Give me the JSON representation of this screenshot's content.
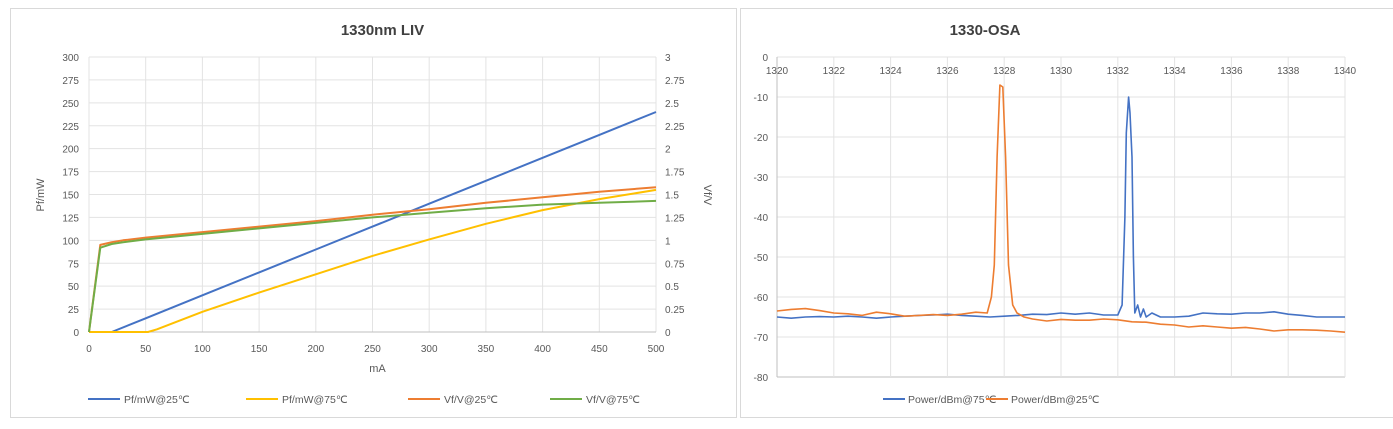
{
  "chart_data": [
    {
      "type": "line",
      "title": "1330nm LIV",
      "xlabel": "mA",
      "ylabel": "Pf/mW",
      "y2label": "Vf/V",
      "xlim": [
        0,
        500
      ],
      "ylim": [
        0,
        300
      ],
      "y2lim": [
        0,
        3
      ],
      "xticks": [
        "0",
        "50",
        "100",
        "150",
        "200",
        "250",
        "300",
        "350",
        "400",
        "450",
        "500"
      ],
      "yticks": [
        "0",
        "25",
        "50",
        "75",
        "100",
        "125",
        "150",
        "175",
        "200",
        "225",
        "250",
        "275",
        "300"
      ],
      "y2ticks": [
        "0",
        "0.25",
        "0.5",
        "0.75",
        "1",
        "1.25",
        "1.5",
        "1.75",
        "2",
        "2.25",
        "2.5",
        "2.75",
        "3"
      ],
      "grid": true,
      "legend_position": "bottom",
      "series": [
        {
          "name": "Pf/mW@25℃",
          "axis": "left",
          "color": "#4472C4",
          "x": [
            0,
            10,
            20,
            50,
            100,
            150,
            200,
            250,
            300,
            350,
            400,
            450,
            500
          ],
          "y": [
            0,
            0,
            0,
            15,
            40,
            65,
            90,
            115,
            140,
            165,
            190,
            215,
            240
          ]
        },
        {
          "name": "Pf/mW@75℃",
          "axis": "left",
          "color": "#FFC000",
          "x": [
            0,
            10,
            20,
            30,
            40,
            52,
            60,
            100,
            150,
            200,
            250,
            300,
            350,
            400,
            450,
            500
          ],
          "y": [
            0,
            0,
            0,
            0,
            0,
            0,
            3,
            22,
            43,
            63,
            83,
            101,
            118,
            133,
            145,
            155
          ]
        },
        {
          "name": "Vf/V@25℃",
          "axis": "right",
          "color": "#ED7D31",
          "x": [
            0,
            10,
            20,
            30,
            50,
            100,
            150,
            200,
            250,
            300,
            350,
            400,
            450,
            500
          ],
          "y": [
            0,
            0.95,
            0.98,
            1.0,
            1.03,
            1.09,
            1.15,
            1.21,
            1.28,
            1.34,
            1.41,
            1.47,
            1.53,
            1.58
          ]
        },
        {
          "name": "Vf/V@75℃",
          "axis": "right",
          "color": "#70AD47",
          "x": [
            0,
            10,
            20,
            30,
            50,
            100,
            150,
            200,
            250,
            300,
            350,
            400,
            450,
            500
          ],
          "y": [
            0,
            0.92,
            0.96,
            0.98,
            1.01,
            1.07,
            1.13,
            1.19,
            1.25,
            1.3,
            1.35,
            1.39,
            1.41,
            1.43
          ]
        }
      ]
    },
    {
      "type": "line",
      "title": "1330-OSA",
      "xlabel": "",
      "ylabel": "",
      "xlim": [
        1320,
        1340
      ],
      "ylim": [
        -80,
        0
      ],
      "xticks": [
        "1320",
        "1322",
        "1324",
        "1326",
        "1328",
        "1330",
        "1332",
        "1334",
        "1336",
        "1338",
        "1340"
      ],
      "yticks": [
        "0",
        "-10",
        "-20",
        "-30",
        "-40",
        "-50",
        "-60",
        "-70",
        "-80"
      ],
      "grid": true,
      "legend_position": "bottom",
      "series": [
        {
          "name": "Power/dBm@75℃",
          "color": "#4472C4",
          "x": [
            1320,
            1320.5,
            1321,
            1321.5,
            1322,
            1322.5,
            1323,
            1323.5,
            1324,
            1324.5,
            1325,
            1325.5,
            1326,
            1326.5,
            1327,
            1327.5,
            1328,
            1328.5,
            1329,
            1329.5,
            1330,
            1330.5,
            1331,
            1331.5,
            1332,
            1332.15,
            1332.25,
            1332.3,
            1332.38,
            1332.43,
            1332.5,
            1332.55,
            1332.6,
            1332.7,
            1332.8,
            1332.9,
            1333,
            1333.2,
            1333.5,
            1334,
            1334.5,
            1335,
            1335.5,
            1336,
            1336.5,
            1337,
            1337.5,
            1338,
            1338.5,
            1339,
            1339.5,
            1340
          ],
          "y": [
            -65,
            -65.3,
            -65,
            -64.9,
            -65,
            -64.8,
            -65,
            -65.3,
            -65,
            -64.8,
            -64.6,
            -64.5,
            -64.3,
            -64.6,
            -64.8,
            -65,
            -64.8,
            -64.6,
            -64.3,
            -64.4,
            -64,
            -64.3,
            -64,
            -64.5,
            -64.5,
            -62,
            -40,
            -19,
            -10,
            -14,
            -25,
            -50,
            -64,
            -62,
            -65,
            -63,
            -65,
            -64,
            -65,
            -65,
            -64.8,
            -64,
            -64.2,
            -64.3,
            -64,
            -64,
            -63.7,
            -64.3,
            -64.6,
            -65,
            -65,
            -65
          ]
        },
        {
          "name": "Power/dBm@25℃",
          "color": "#ED7D31",
          "x": [
            1320,
            1320.5,
            1321,
            1321.5,
            1322,
            1322.5,
            1323,
            1323.5,
            1324,
            1324.5,
            1325,
            1325.5,
            1326,
            1326.5,
            1327,
            1327.4,
            1327.55,
            1327.65,
            1327.75,
            1327.85,
            1327.95,
            1328.05,
            1328.15,
            1328.3,
            1328.45,
            1328.7,
            1329,
            1329.5,
            1330,
            1330.5,
            1331,
            1331.5,
            1332,
            1332.5,
            1333,
            1333.5,
            1334,
            1334.5,
            1335,
            1335.5,
            1336,
            1336.5,
            1337,
            1337.5,
            1338,
            1338.5,
            1339,
            1339.5,
            1340
          ],
          "y": [
            -63.5,
            -63.1,
            -62.9,
            -63.4,
            -64,
            -64.2,
            -64.6,
            -63.8,
            -64.2,
            -64.8,
            -64.6,
            -64.4,
            -64.6,
            -64.3,
            -63.8,
            -64,
            -60,
            -52,
            -25,
            -7,
            -7.5,
            -25,
            -52,
            -62,
            -64,
            -65,
            -65.5,
            -66,
            -65.6,
            -65.8,
            -65.8,
            -65.5,
            -65.7,
            -66.2,
            -66.3,
            -66.8,
            -67,
            -67.5,
            -67.2,
            -67.5,
            -67.8,
            -67.6,
            -68,
            -68.5,
            -68.2,
            -68.2,
            -68.3,
            -68.5,
            -68.8
          ]
        }
      ]
    }
  ]
}
